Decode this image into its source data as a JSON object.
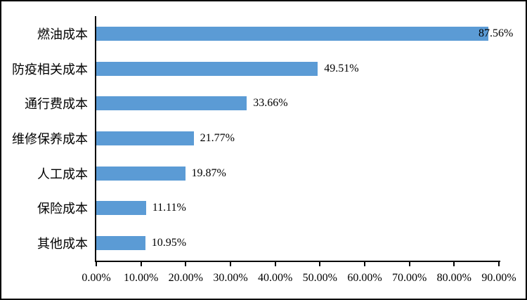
{
  "chart_data": {
    "type": "bar",
    "orientation": "horizontal",
    "title": "",
    "categories": [
      "燃油成本",
      "防疫相关成本",
      "通行费成本",
      "维修保养成本",
      "人工成本",
      "保险成本",
      "其他成本"
    ],
    "values": [
      87.56,
      49.51,
      33.66,
      21.77,
      19.87,
      11.11,
      10.95
    ],
    "value_labels": [
      "87.56%",
      "49.51%",
      "33.66%",
      "21.77%",
      "19.87%",
      "11.11%",
      "10.95%"
    ],
    "x_ticks": [
      "0.00%",
      "10.00%",
      "20.00%",
      "30.00%",
      "40.00%",
      "50.00%",
      "60.00%",
      "70.00%",
      "80.00%",
      "90.00%"
    ],
    "x_tick_values": [
      0,
      10,
      20,
      30,
      40,
      50,
      60,
      70,
      80,
      90
    ],
    "xlim": [
      0,
      90
    ],
    "xlabel": "",
    "ylabel": "",
    "grid": false,
    "legend": "none",
    "colors": {
      "bar": "#5B9BD5",
      "axis": "#000000",
      "text": "#000000",
      "background": "#ffffff",
      "frame_border": "#000000"
    }
  }
}
